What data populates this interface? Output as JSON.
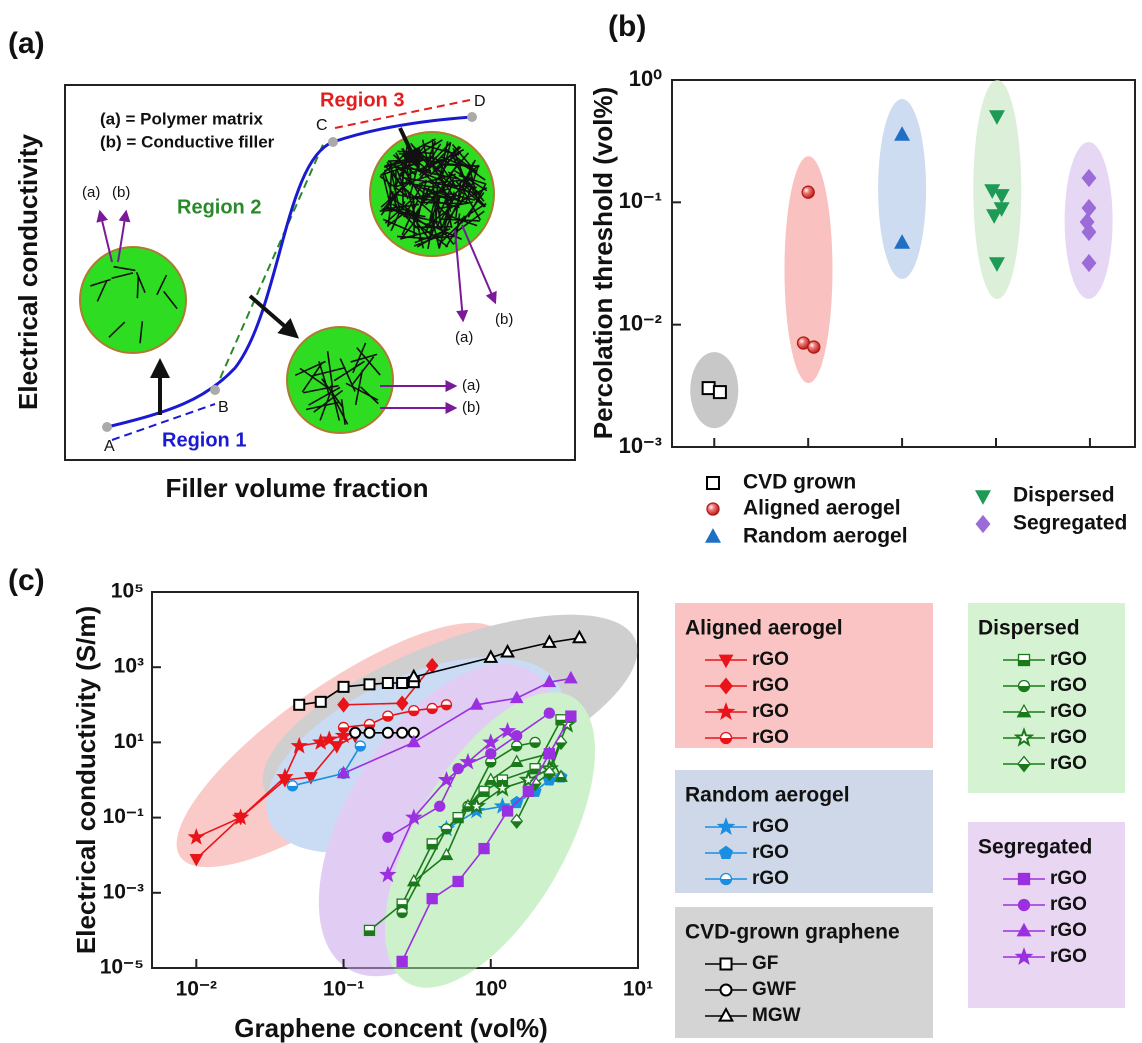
{
  "labels": {
    "a": "(a)",
    "b": "(b)",
    "c": "(c)"
  },
  "diagram": {
    "legend": [
      "(a) = Polymer matrix",
      "(b) = Conductive filler"
    ],
    "regions": [
      "Region 1",
      "Region 2",
      "Region 3"
    ],
    "points": [
      "A",
      "B",
      "C",
      "D"
    ],
    "ylabel": "Electrical conductivity",
    "xlabel": "Filler volume fraction",
    "callouts": [
      [
        "(a)",
        "(b)"
      ],
      [
        "(a)",
        "(b)"
      ],
      [
        "(a)",
        "(b)"
      ]
    ]
  },
  "chart_data": [
    {
      "type": "scatter",
      "ylabel": "Percolation threshold (vol%)",
      "ylog": true,
      "xlim": [
        0.55,
        5.48
      ],
      "xticks": [
        1,
        2,
        3,
        4,
        5
      ],
      "ylim": [
        0.001,
        1
      ],
      "yticks": [
        {
          "value": 0.001,
          "label": "10⁻³"
        },
        {
          "value": 0.01,
          "label": "10⁻²"
        },
        {
          "value": 0.1,
          "label": "10⁻¹"
        },
        {
          "value": 1,
          "label": "10⁰"
        }
      ],
      "series": [
        {
          "name": "CVD grown",
          "color": "#000000",
          "shade": "#b0b0b0",
          "marker": "open-square",
          "x": [
            0.94,
            1.06
          ],
          "values": [
            0.00303,
            0.00281
          ]
        },
        {
          "name": "Aligned aerogel",
          "color": "#e8403c",
          "shade": "#f7a6a4",
          "marker": "sphere",
          "x": [
            2.0,
            1.95,
            2.06
          ],
          "values": [
            0.121,
            0.00708,
            0.00656
          ]
        },
        {
          "name": "Random aerogel",
          "color": "#1f6fc5",
          "shade": "#b9cdeb",
          "marker": "triangle",
          "x": [
            3,
            3
          ],
          "values": [
            0.355,
            0.0465
          ]
        },
        {
          "name": "Dispersed",
          "color": "#1d9a56",
          "shade": "#cde8c8",
          "marker": "triangle-down",
          "x": [
            4.01,
            3.96,
            4.06,
            3.98,
            4.06,
            4.01
          ],
          "values": [
            0.508,
            0.126,
            0.115,
            0.0787,
            0.0898,
            0.0319
          ]
        },
        {
          "name": "Segregated",
          "color": "#9b6bd8",
          "shade": "#dcc8f0",
          "marker": "diamond",
          "x": [
            4.99,
            4.99,
            4.97,
            4.99,
            4.99
          ],
          "values": [
            0.158,
            0.0898,
            0.069,
            0.0572,
            0.0319
          ]
        }
      ]
    },
    {
      "type": "line",
      "xlabel": "Graphene concent (vol%)",
      "ylabel": "Electrical conductivity (S/m)",
      "xlog": true,
      "ylog": true,
      "xlim": [
        0.005,
        10
      ],
      "xticks": [
        {
          "value": 0.01,
          "label": "10⁻²"
        },
        {
          "value": 0.1,
          "label": "10⁻¹"
        },
        {
          "value": 1,
          "label": "10⁰"
        },
        {
          "value": 10,
          "label": "10¹"
        }
      ],
      "ylim": [
        1e-05,
        100000
      ],
      "yticks": [
        {
          "value": 1e-05,
          "label": "10⁻⁵"
        },
        {
          "value": 0.001,
          "label": "10⁻³"
        },
        {
          "value": 0.1,
          "label": "10⁻¹"
        },
        {
          "value": 10,
          "label": "10¹"
        },
        {
          "value": 1000,
          "label": "10³"
        },
        {
          "value": 100000,
          "label": "10⁵"
        }
      ],
      "groups": [
        {
          "name": "Aligned aerogel",
          "color": "#e8141a",
          "shade": "#f9c4c3",
          "series": [
            {
              "name": "rGO",
              "marker": "triangle-down",
              "x": [
                0.01,
                0.02,
                0.04,
                0.06,
                0.09,
                0.12
              ],
              "values": [
                0.008,
                0.1,
                1,
                1.2,
                8,
                15
              ]
            },
            {
              "name": "rGO",
              "marker": "diamond",
              "x": [
                0.1,
                0.25,
                0.4
              ],
              "values": [
                100,
                110,
                1100
              ]
            },
            {
              "name": "rGO",
              "marker": "star",
              "x": [
                0.01,
                0.02,
                0.04,
                0.05,
                0.07,
                0.08,
                0.1
              ],
              "values": [
                0.03,
                0.1,
                1.2,
                8,
                10,
                12,
                15
              ]
            },
            {
              "name": "rGO",
              "marker": "half-circle",
              "x": [
                0.1,
                0.15,
                0.2,
                0.3,
                0.4,
                0.5
              ],
              "values": [
                25,
                30,
                50,
                70,
                80,
                100
              ]
            }
          ]
        },
        {
          "name": "Random aerogel",
          "color": "#1a8ee0",
          "shade": "#cfd8e8",
          "series": [
            {
              "name": "rGO",
              "marker": "star",
              "x": [
                0.5,
                0.8,
                1.2
              ],
              "values": [
                0.05,
                0.15,
                0.2
              ]
            },
            {
              "name": "rGO",
              "marker": "pentagon",
              "x": [
                1.5,
                2,
                2.5,
                3
              ],
              "values": [
                0.25,
                0.5,
                1,
                1.2
              ]
            },
            {
              "name": "rGO",
              "marker": "half-circle",
              "x": [
                0.045,
                0.1,
                0.13
              ],
              "values": [
                0.7,
                1.5,
                8
              ]
            }
          ]
        },
        {
          "name": "CVD-grown graphene",
          "color": "#000000",
          "shade": "#d4d4d4",
          "series": [
            {
              "name": "GF",
              "marker": "open-square",
              "x": [
                0.05,
                0.07,
                0.1,
                0.15,
                0.2,
                0.25,
                0.3
              ],
              "values": [
                100,
                120,
                300,
                350,
                380,
                380,
                400
              ]
            },
            {
              "name": "GWF",
              "marker": "open-circle",
              "x": [
                0.12,
                0.15,
                0.2,
                0.25,
                0.3
              ],
              "values": [
                18,
                18,
                18,
                18,
                18
              ]
            },
            {
              "name": "MGW",
              "marker": "open-triangle",
              "x": [
                0.3,
                1,
                1.3,
                2.5,
                4
              ],
              "values": [
                550,
                1800,
                2500,
                4500,
                6000
              ]
            }
          ]
        },
        {
          "name": "Dispersed",
          "color": "#1a7a1a",
          "shade": "#d5f3d3",
          "series": [
            {
              "name": "rGO",
              "marker": "half-square",
              "x": [
                0.15,
                0.25,
                0.4,
                0.6,
                0.9,
                1.2,
                2,
                3
              ],
              "values": [
                0.0001,
                0.0005,
                0.02,
                0.1,
                0.5,
                1,
                2,
                40
              ]
            },
            {
              "name": "rGO",
              "marker": "half-circle",
              "x": [
                0.25,
                0.5,
                0.7,
                1,
                1.5,
                2
              ],
              "values": [
                0.0003,
                0.05,
                0.2,
                3,
                8,
                10
              ]
            },
            {
              "name": "rGO",
              "marker": "half-triangle",
              "x": [
                0.3,
                0.5,
                0.7,
                1,
                1.5,
                2.5,
                3
              ],
              "values": [
                0.002,
                0.01,
                0.2,
                1,
                3,
                5,
                1.2
              ]
            },
            {
              "name": "rGO",
              "marker": "open-star",
              "x": [
                0.8,
                1.2,
                1.8,
                2.5,
                3.3
              ],
              "values": [
                0.2,
                0.6,
                1,
                2,
                30
              ]
            },
            {
              "name": "rGO",
              "marker": "half-diamond",
              "x": [
                1.5,
                2,
                2.5,
                3
              ],
              "values": [
                0.08,
                0.8,
                1.5,
                10
              ]
            }
          ]
        },
        {
          "name": "Segregated",
          "color": "#9b30e0",
          "shade": "#e8d6f2",
          "series": [
            {
              "name": "rGO",
              "marker": "square",
              "x": [
                0.25,
                0.4,
                0.6,
                0.9,
                1.3,
                1.8,
                2.5,
                3.5
              ],
              "values": [
                1.5e-05,
                0.0007,
                0.002,
                0.015,
                0.15,
                0.5,
                5,
                50
              ]
            },
            {
              "name": "rGO",
              "marker": "circle",
              "x": [
                0.2,
                0.45,
                0.6,
                1,
                1.5,
                2.5
              ],
              "values": [
                0.03,
                0.2,
                2,
                5,
                15,
                60
              ]
            },
            {
              "name": "rGO",
              "marker": "triangle",
              "x": [
                0.1,
                0.3,
                0.8,
                1.5,
                2.5,
                3.5
              ],
              "values": [
                1.5,
                10,
                100,
                150,
                400,
                500
              ]
            },
            {
              "name": "rGO",
              "marker": "star",
              "x": [
                0.2,
                0.3,
                0.5,
                0.7,
                1,
                1.3
              ],
              "values": [
                0.003,
                0.1,
                1,
                3,
                10,
                20
              ]
            }
          ]
        }
      ]
    }
  ]
}
